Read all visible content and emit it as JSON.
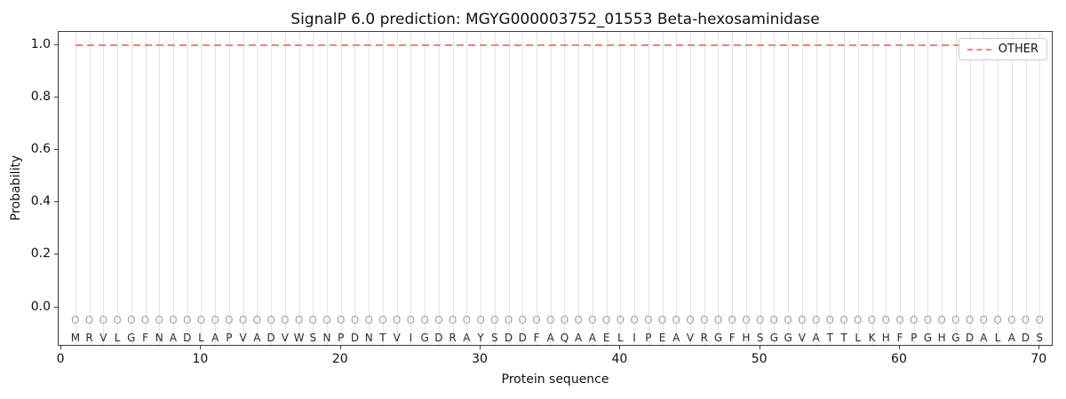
{
  "chart_data": {
    "type": "line",
    "title": "SignalP 6.0 prediction: MGYG000003752_01553 Beta-hexosaminidase",
    "xlabel": "Protein sequence",
    "ylabel": "Probability",
    "xlim": [
      -0.2,
      71
    ],
    "ylim": [
      -0.15,
      1.05
    ],
    "x_ticks": {
      "values": [
        0,
        10,
        20,
        30,
        40,
        50,
        60,
        70
      ],
      "labels": [
        "0",
        "10",
        "20",
        "30",
        "40",
        "50",
        "60",
        "70"
      ]
    },
    "y_ticks": {
      "values": [
        0.0,
        0.2,
        0.4,
        0.6,
        0.8,
        1.0
      ],
      "labels": [
        "0.0",
        "0.2",
        "0.4",
        "0.6",
        "0.8",
        "1.0"
      ]
    },
    "grid": {
      "vertical_per_residue": true,
      "color": "#e4e4e4"
    },
    "legend": {
      "position": "upper-right",
      "entries": [
        {
          "label": "OTHER",
          "color": "#f08080",
          "linestyle": "dashed"
        }
      ]
    },
    "series": [
      {
        "name": "OTHER",
        "linestyle": "dashed",
        "color": "#f08080",
        "x_start": 1,
        "x_end": 70,
        "constant_value": 1.0
      }
    ],
    "sequence": "MRVLGFNADLAPVADVWSNPDNTVIGDRAYSDDFAQAAELIPEAVRGFHSGGVATTLKHFPGHGDALADS",
    "residue_labels": "OOOOOOOOOOOOOOOOOOOOOOOOOOOOOOOOOOOOOOOOOOOOOOOOOOOOOOOOOOOOOOOOOOOOOO",
    "residue_label_y": -0.05,
    "sequence_y": -0.115
  }
}
